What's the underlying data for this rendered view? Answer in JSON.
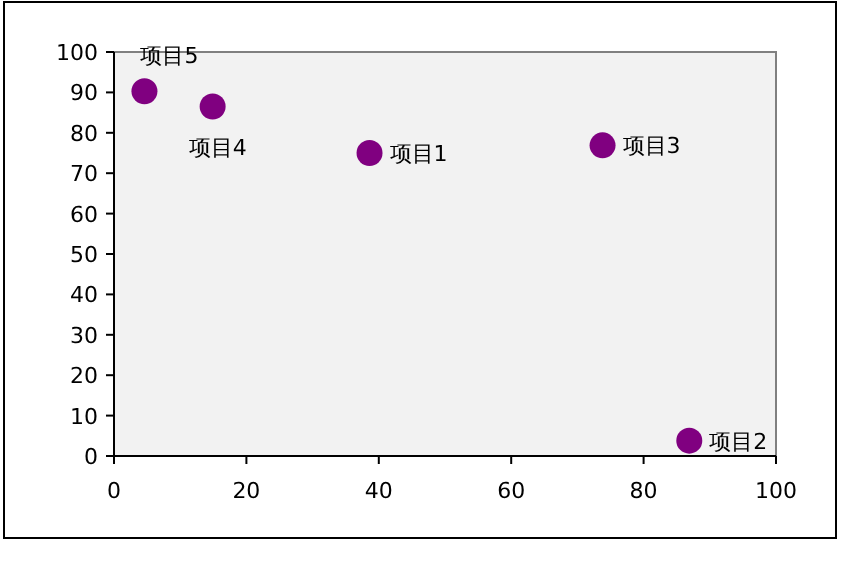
{
  "chart_data": {
    "type": "scatter",
    "x": [
      38.6,
      86.9,
      73.8,
      14.9,
      4.6
    ],
    "values": [
      75.0,
      3.8,
      76.9,
      86.5,
      90.3
    ],
    "color": "#800080",
    "marker": "circle",
    "xlim": [
      0,
      100
    ],
    "ylim": [
      0,
      100
    ],
    "xticks": [
      0,
      20,
      40,
      60,
      80,
      100
    ],
    "yticks": [
      0,
      10,
      20,
      30,
      40,
      50,
      60,
      70,
      80,
      90,
      100
    ],
    "grid": false,
    "annotations": [
      {
        "text": "项目1",
        "x": 38.6,
        "y": 75.0
      },
      {
        "text": "项目2",
        "x": 86.9,
        "y": 3.8
      },
      {
        "text": "项目3",
        "x": 73.8,
        "y": 76.9
      },
      {
        "text": "项目4",
        "x": 14.9,
        "y": 86.5
      },
      {
        "text": "项目5",
        "x": 4.6,
        "y": 90.3
      }
    ]
  }
}
